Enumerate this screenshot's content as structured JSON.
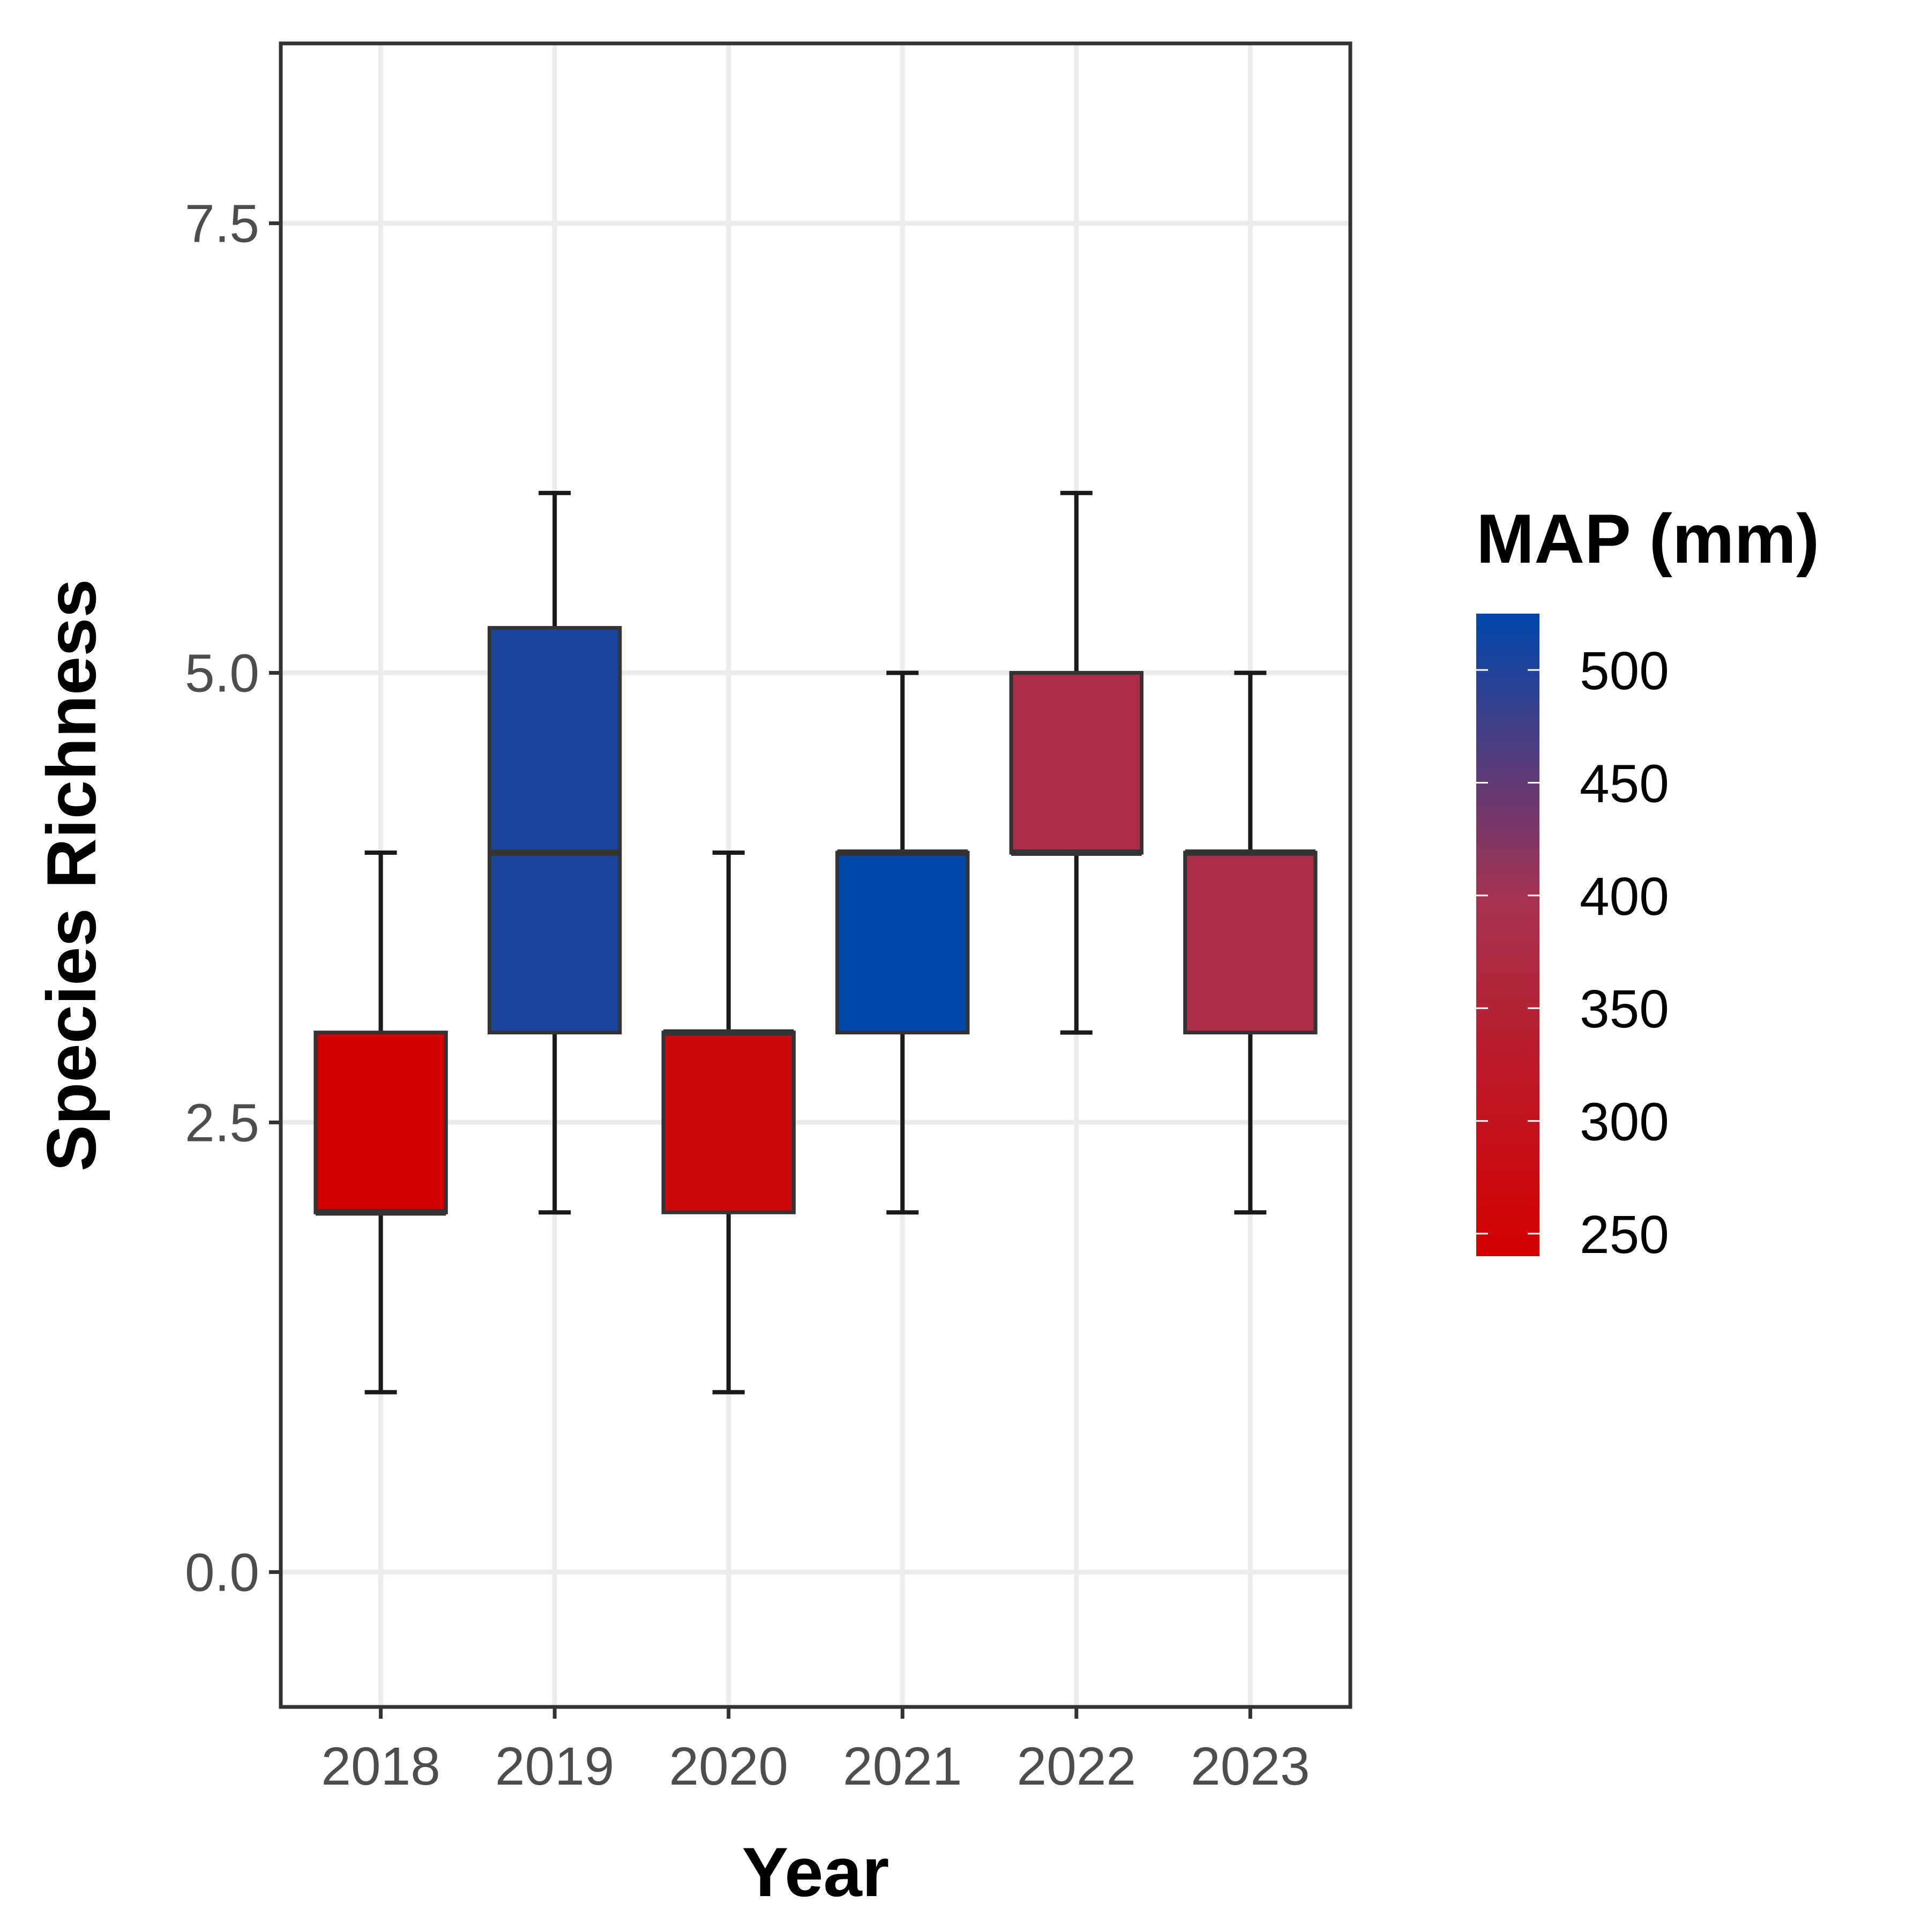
{
  "chart_data": {
    "type": "boxplot",
    "xlabel": "Year",
    "ylabel": "Species Richness",
    "ylim": [
      -0.75,
      8.5
    ],
    "y_ticks": [
      "0.0",
      "2.5",
      "5.0",
      "7.5"
    ],
    "y_tick_values": [
      0,
      2.5,
      5,
      7.5
    ],
    "grid": true,
    "categories": [
      "2018",
      "2019",
      "2020",
      "2021",
      "2022",
      "2023"
    ],
    "boxes": [
      {
        "year": "2018",
        "min": 1,
        "q1": 2,
        "median": 2,
        "q3": 3,
        "max": 4,
        "map_mm": 240
      },
      {
        "year": "2019",
        "min": 2,
        "q1": 3,
        "median": 4,
        "q3": 5.25,
        "max": 6,
        "map_mm": 505
      },
      {
        "year": "2020",
        "min": 1,
        "q1": 2,
        "median": 3,
        "q3": 3,
        "max": 4,
        "map_mm": 265
      },
      {
        "year": "2021",
        "min": 2,
        "q1": 3,
        "median": 4,
        "q3": 4,
        "max": 5,
        "map_mm": 525
      },
      {
        "year": "2022",
        "min": 3,
        "q1": 4,
        "median": 4,
        "q3": 5,
        "max": 6,
        "map_mm": 380
      },
      {
        "year": "2023",
        "min": 2,
        "q1": 3,
        "median": 4,
        "q3": 4,
        "max": 5,
        "map_mm": 380
      }
    ],
    "colorbar": {
      "title": "MAP (mm)",
      "min": 240,
      "max": 525,
      "ticks": [
        250,
        300,
        350,
        400,
        450,
        500
      ],
      "low_color": "#d40000",
      "high_color": "#0047ab"
    },
    "legend_position": "right"
  }
}
